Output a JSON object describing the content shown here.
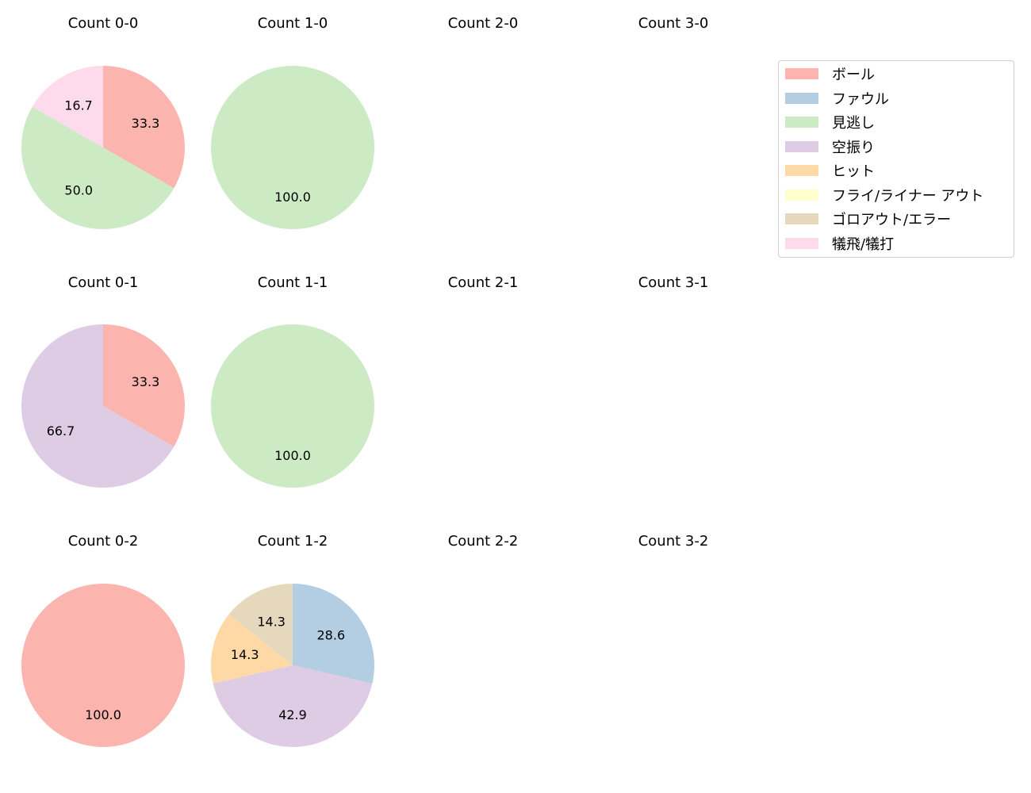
{
  "chart_data": {
    "type": "pie",
    "layout": {
      "rows": 3,
      "cols": 4,
      "start_angle": 90,
      "direction": "clockwise",
      "label_format": "%.1f",
      "legend_position": "upper right"
    },
    "legend": [
      {
        "label": "ボール",
        "color": "#fbb4ae"
      },
      {
        "label": "ファウル",
        "color": "#b3cde3"
      },
      {
        "label": "見逃し",
        "color": "#ccebc5"
      },
      {
        "label": "空振り",
        "color": "#decbe4"
      },
      {
        "label": "ヒット",
        "color": "#fed9a6"
      },
      {
        "label": "フライ/ライナー アウト",
        "color": "#ffffcc"
      },
      {
        "label": "ゴロアウト/エラー",
        "color": "#e5d8bd"
      },
      {
        "label": "犠飛/犠打",
        "color": "#fddaec"
      }
    ],
    "subplots": [
      {
        "title": "Count 0-0",
        "row": 0,
        "col": 0,
        "slices": [
          {
            "category": "ボール",
            "value": 33.3
          },
          {
            "category": "見逃し",
            "value": 50.0
          },
          {
            "category": "犠飛/犠打",
            "value": 16.7
          }
        ]
      },
      {
        "title": "Count 1-0",
        "row": 0,
        "col": 1,
        "slices": [
          {
            "category": "見逃し",
            "value": 100.0
          }
        ]
      },
      {
        "title": "Count 2-0",
        "row": 0,
        "col": 2,
        "slices": []
      },
      {
        "title": "Count 3-0",
        "row": 0,
        "col": 3,
        "slices": []
      },
      {
        "title": "Count 0-1",
        "row": 1,
        "col": 0,
        "slices": [
          {
            "category": "ボール",
            "value": 33.3
          },
          {
            "category": "空振り",
            "value": 66.7
          }
        ]
      },
      {
        "title": "Count 1-1",
        "row": 1,
        "col": 1,
        "slices": [
          {
            "category": "見逃し",
            "value": 100.0
          }
        ]
      },
      {
        "title": "Count 2-1",
        "row": 1,
        "col": 2,
        "slices": []
      },
      {
        "title": "Count 3-1",
        "row": 1,
        "col": 3,
        "slices": []
      },
      {
        "title": "Count 0-2",
        "row": 2,
        "col": 0,
        "slices": [
          {
            "category": "ボール",
            "value": 100.0
          }
        ]
      },
      {
        "title": "Count 1-2",
        "row": 2,
        "col": 1,
        "slices": [
          {
            "category": "ファウル",
            "value": 28.6
          },
          {
            "category": "空振り",
            "value": 42.9
          },
          {
            "category": "ヒット",
            "value": 14.3
          },
          {
            "category": "ゴロアウト/エラー",
            "value": 14.3
          }
        ]
      },
      {
        "title": "Count 2-2",
        "row": 2,
        "col": 2,
        "slices": []
      },
      {
        "title": "Count 3-2",
        "row": 2,
        "col": 3,
        "slices": []
      }
    ]
  }
}
